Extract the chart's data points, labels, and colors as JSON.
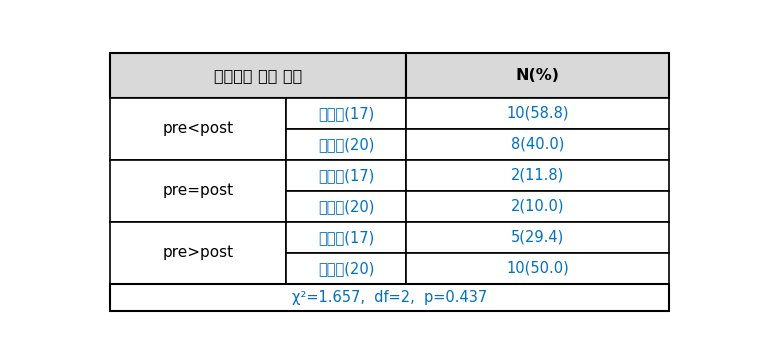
{
  "header_col1": "식품안전 행동 점수",
  "header_col2": "N(%)",
  "rows": [
    {
      "group": "pre<post",
      "subgroup": "교육군(17)",
      "value": "10(58.8)"
    },
    {
      "group": "pre<post",
      "subgroup": "대조군(20)",
      "value": "8(40.0)"
    },
    {
      "group": "pre=post",
      "subgroup": "교육군(17)",
      "value": "2(11.8)"
    },
    {
      "group": "pre=post",
      "subgroup": "대조군(20)",
      "value": "2(10.0)"
    },
    {
      "group": "pre>post",
      "subgroup": "교육군(17)",
      "value": "5(29.4)"
    },
    {
      "group": "pre>post",
      "subgroup": "대조군(20)",
      "value": "10(50.0)"
    }
  ],
  "footer": "χ²=1.657,  df=2,  p=0.437",
  "header_bg": "#d9d9d9",
  "body_bg": "#ffffff",
  "border_color": "#000000",
  "header_text_color": "#000000",
  "group_text_color": "#000000",
  "subgroup_text_color": "#0070c0",
  "value_text_color": "#0070c0",
  "footer_text_color": "#0070c0",
  "fig_width": 7.6,
  "fig_height": 3.6,
  "dpi": 100
}
